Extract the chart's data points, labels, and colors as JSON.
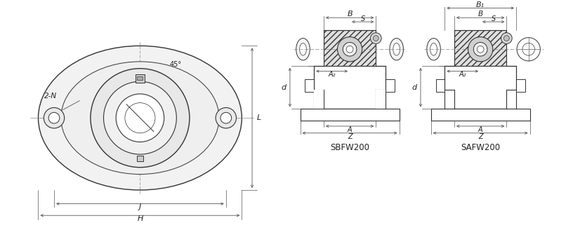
{
  "bg_color": "#ffffff",
  "line_color": "#555555",
  "line_color_dark": "#333333",
  "text_color": "#222222",
  "label_SBFW200": "SBFW200",
  "label_SAFW200": "SAFW200",
  "label_45deg": "45°",
  "label_2N": "2-N",
  "label_L": "L",
  "label_J": "J",
  "label_H": "H",
  "label_d": "d",
  "label_B": "B",
  "label_B1": "B₁",
  "label_S": "S",
  "label_A2": "A₂",
  "label_A": "A",
  "label_Z": "Z",
  "fig_width": 8.16,
  "fig_height": 3.38,
  "dpi": 100
}
